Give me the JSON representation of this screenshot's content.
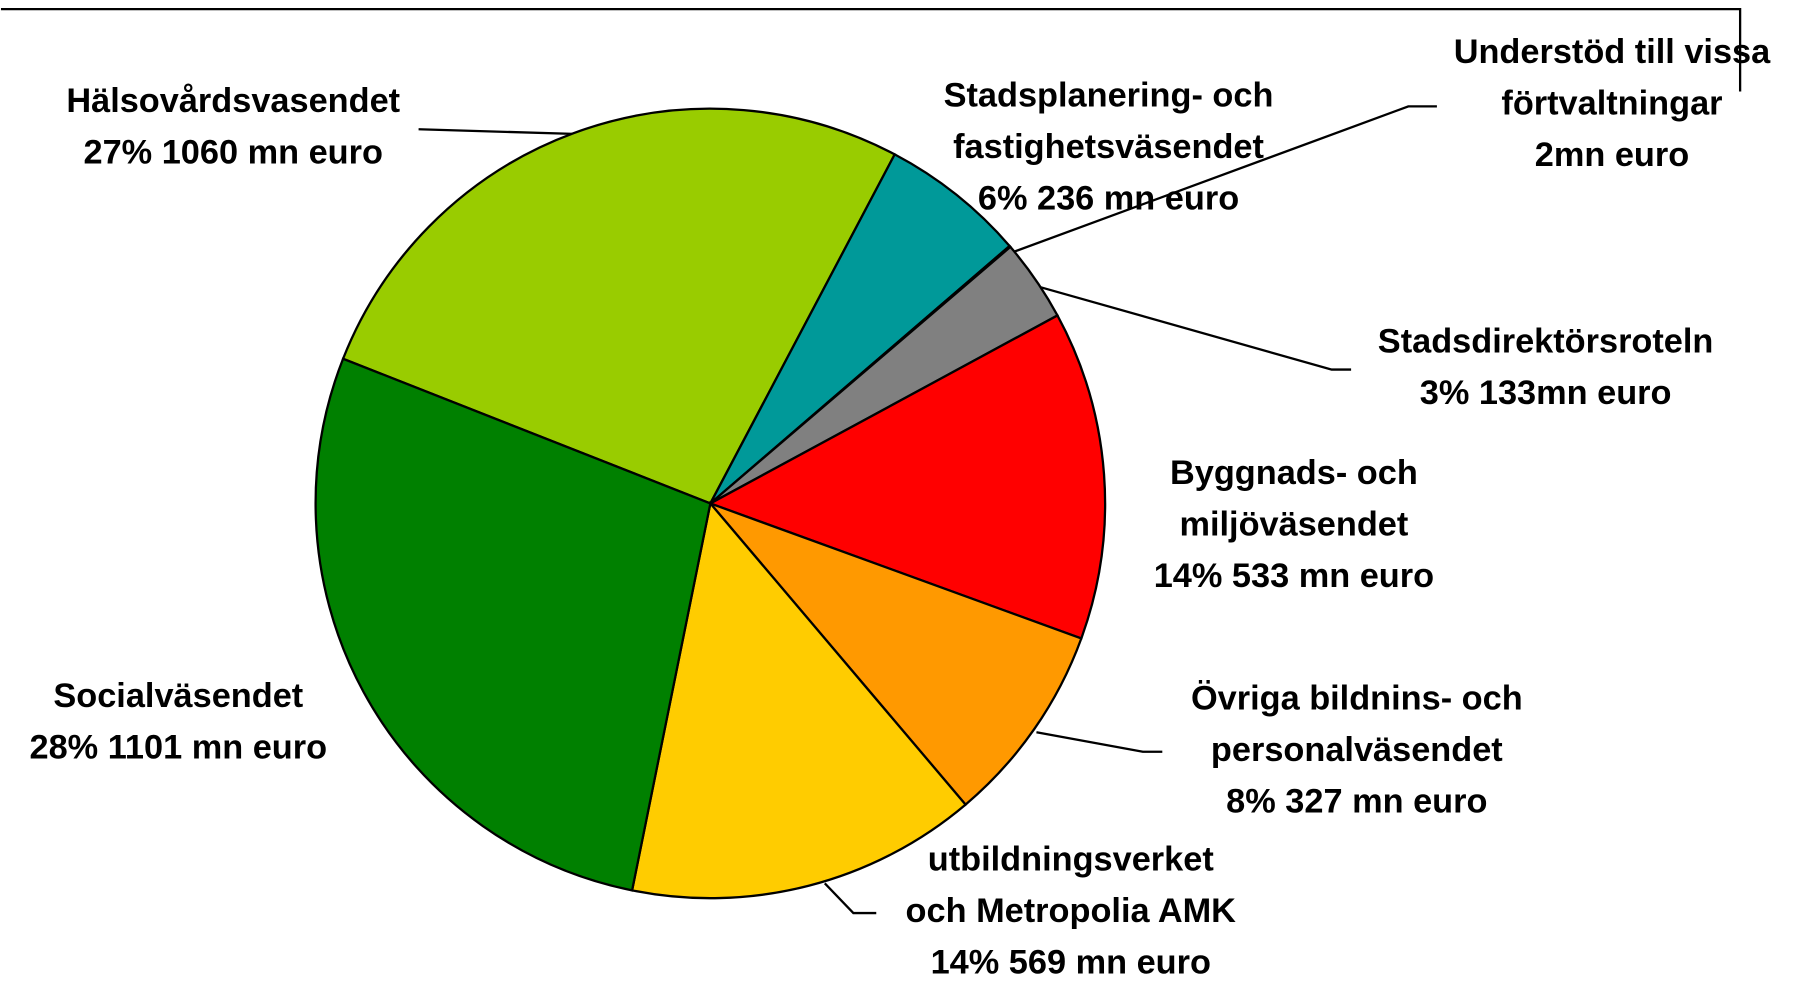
{
  "chart_data": {
    "type": "pie",
    "categories": [
      [
        "Hälsovårdsvasendet"
      ],
      [
        "Stadsplanering- och",
        "fastighetsväsendet"
      ],
      [
        "Understöd till vissa",
        "förtvaltningar"
      ],
      [
        "Stadsdirektörsroteln"
      ],
      [
        "Byggnads- och",
        "miljöväsendet"
      ],
      [
        "Övriga bildnins- och",
        "personalväsendet"
      ],
      [
        "utbildningsverket",
        "och Metropolia AMK"
      ],
      [
        "Socialväsendet"
      ]
    ],
    "values": [
      1060,
      236,
      2,
      133,
      533,
      327,
      569,
      1101
    ],
    "value_labels": [
      "27% 1060 mn  euro",
      "6% 236 mn euro",
      "2mn euro",
      "3% 133mn euro",
      "14% 533 mn euro",
      "8% 327 mn euro",
      "14% 569 mn euro",
      "28% 1101 mn euro"
    ],
    "colors": [
      "#99cc00",
      "#009999",
      "#003366",
      "#808080",
      "#ff0000",
      "#ff9900",
      "#ffcc00",
      "#008000"
    ]
  }
}
